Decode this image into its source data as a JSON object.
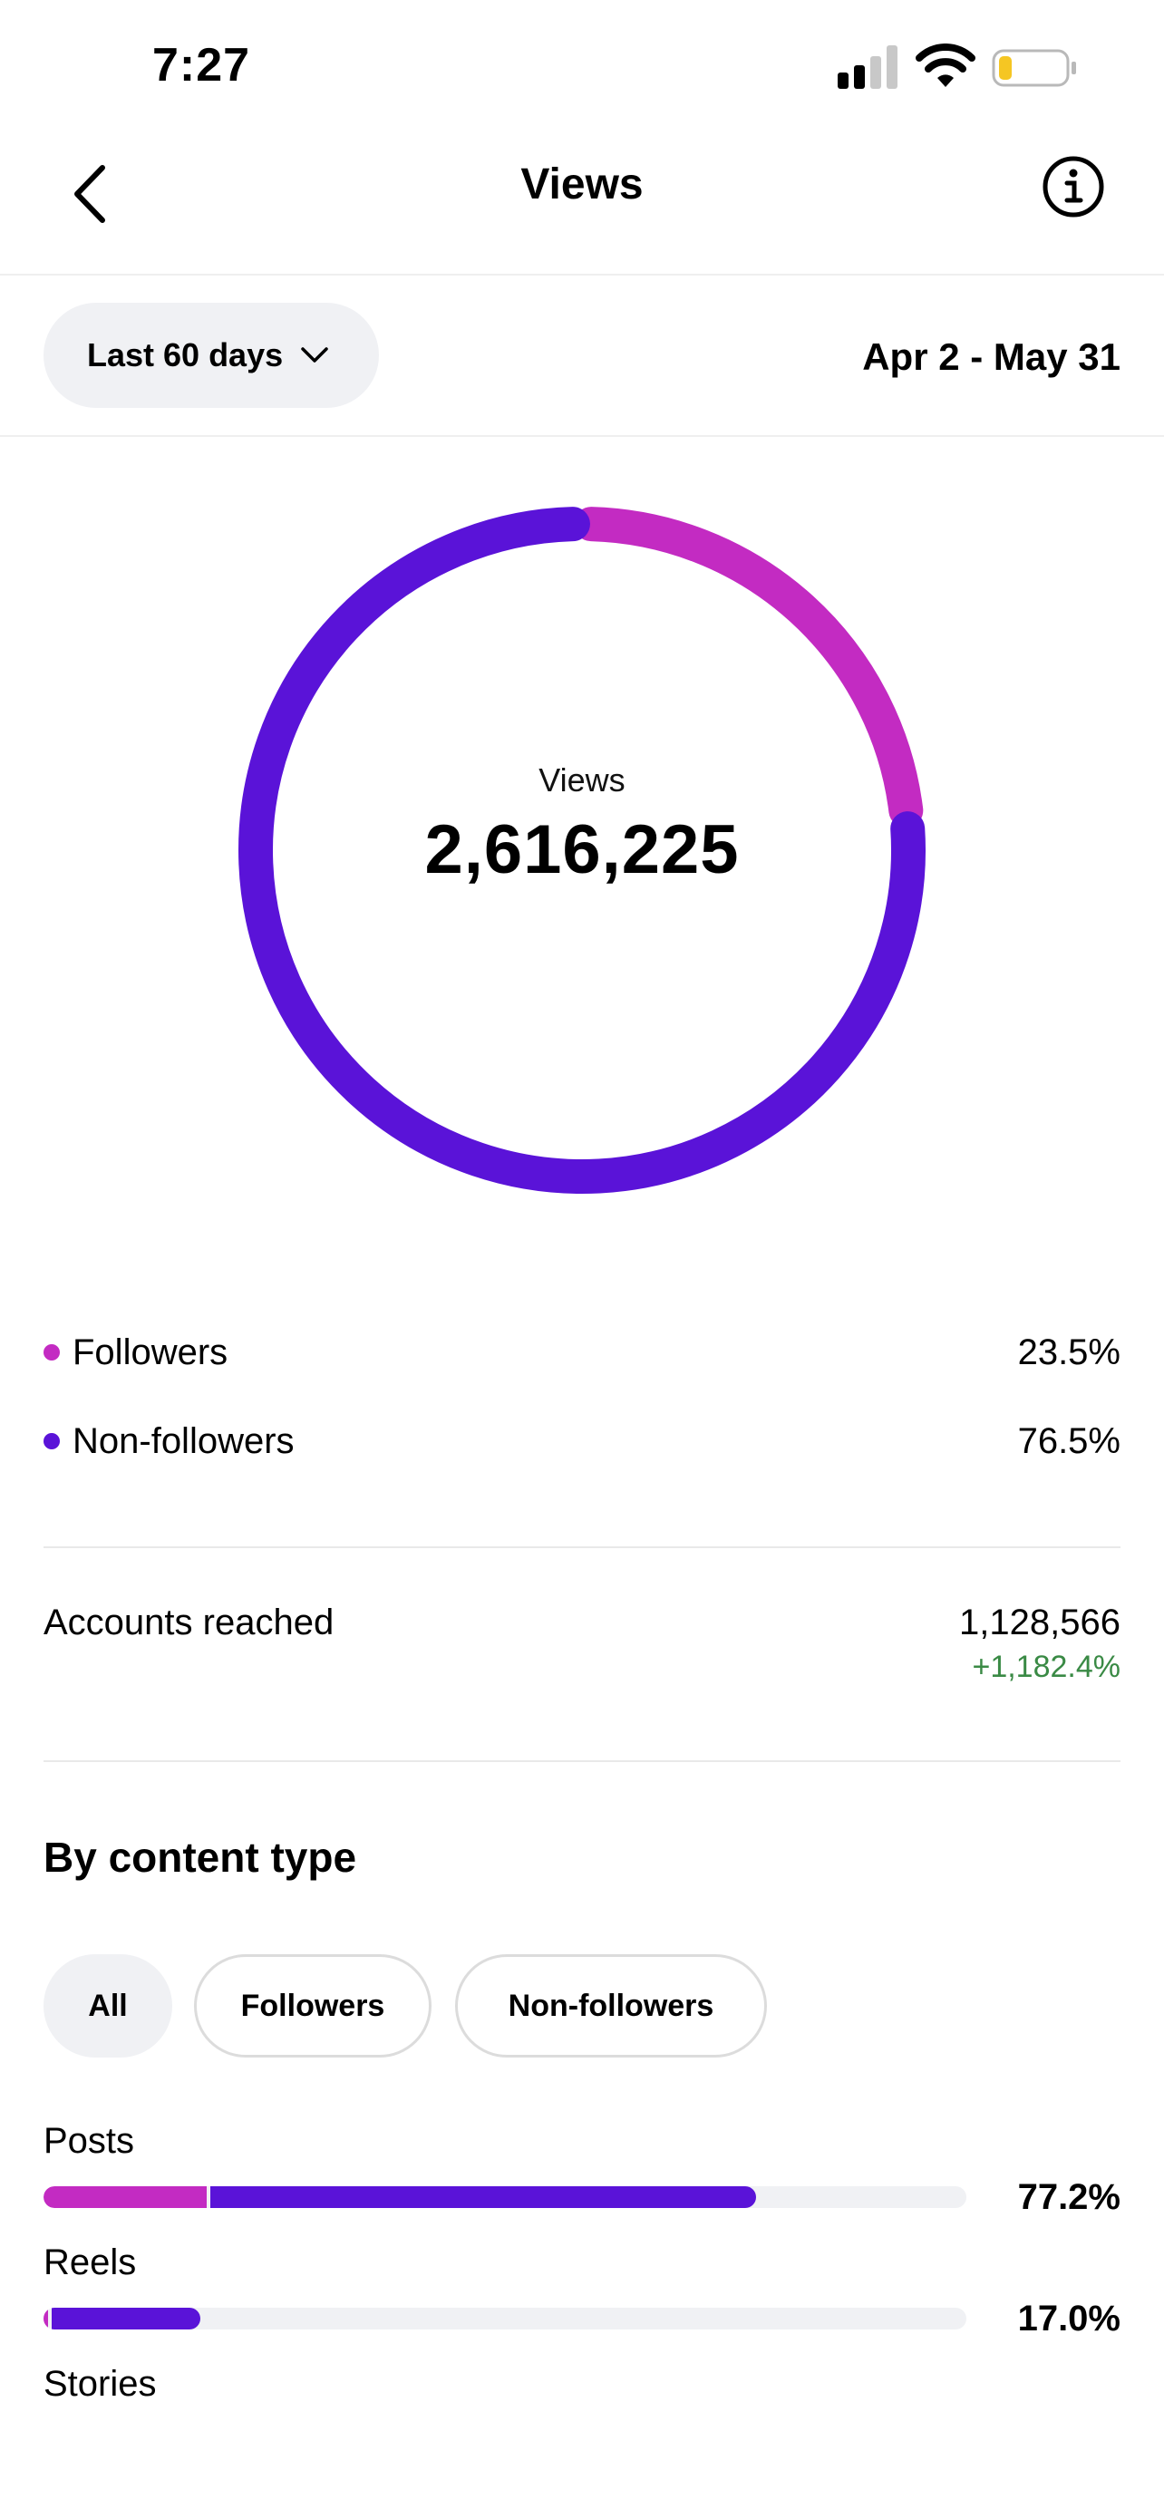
{
  "status_bar": {
    "time": "7:27",
    "icons": [
      "signal-icon",
      "wifi-icon",
      "battery-icon"
    ]
  },
  "header": {
    "title": "Views",
    "icons": [
      "chevron-left-icon",
      "info-icon"
    ]
  },
  "range": {
    "selected": "Last 60 days",
    "date_range": "Apr 2 - May 31"
  },
  "summary": {
    "label": "Views",
    "total": "2,616,225"
  },
  "colors": {
    "followers": "#c32bc2",
    "non_followers": "#5a13d8",
    "track": "#f0f1f4",
    "positive": "#3a8a45"
  },
  "chart_data": {
    "type": "pie",
    "categories": [
      "Followers",
      "Non-followers"
    ],
    "values": [
      23.5,
      76.5
    ]
  },
  "legend": [
    {
      "label": "Followers",
      "value": "23.5%"
    },
    {
      "label": "Non-followers",
      "value": "76.5%"
    }
  ],
  "accounts_reached": {
    "label": "Accounts reached",
    "value": "1,128,566",
    "change": "+1,182.4%"
  },
  "content_type": {
    "title": "By content type",
    "filters": [
      "All",
      "Followers",
      "Non-followers"
    ],
    "selected_filter": "All",
    "rows": [
      {
        "label": "Posts",
        "percent": "77.2%",
        "followers_fraction": 0.177,
        "non_followers_fraction": 0.595
      },
      {
        "label": "Reels",
        "percent": "17.0%",
        "followers_fraction": 0.005,
        "non_followers_fraction": 0.165
      },
      {
        "label": "Stories"
      }
    ]
  }
}
